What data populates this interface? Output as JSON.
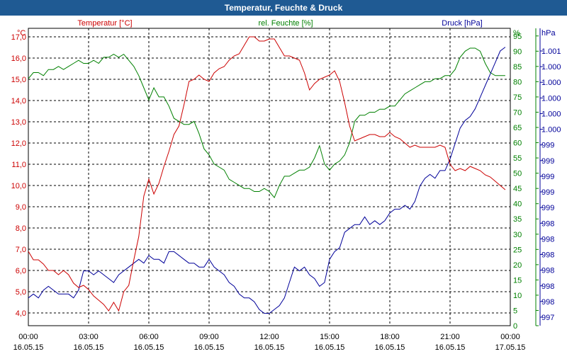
{
  "title": "Temperatur, Feuchte & Druck",
  "colors": {
    "temp": "#cc0000",
    "hum": "#008000",
    "press": "#000099",
    "titlebar": "#1f5a93",
    "grid": "#000000"
  },
  "chart_data": {
    "type": "line",
    "title": "Temperatur, Feuchte & Druck",
    "grid": true,
    "x_ticks": [
      {
        "hours": 0,
        "time": "00:00",
        "date": "16.05.15"
      },
      {
        "hours": 3,
        "time": "03:00",
        "date": "16.05.15"
      },
      {
        "hours": 6,
        "time": "06:00",
        "date": "16.05.15"
      },
      {
        "hours": 9,
        "time": "09:00",
        "date": "16.05.15"
      },
      {
        "hours": 12,
        "time": "12:00",
        "date": "16.05.15"
      },
      {
        "hours": 15,
        "time": "15:00",
        "date": "16.05.15"
      },
      {
        "hours": 18,
        "time": "18:00",
        "date": "16.05.15"
      },
      {
        "hours": 21,
        "time": "21:00",
        "date": "16.05.15"
      },
      {
        "hours": 24,
        "time": "00:00",
        "date": "17.05.15"
      }
    ],
    "xlim": [
      0,
      24
    ],
    "axes": {
      "temp": {
        "label": "Temperatur [°C]",
        "unit": "°C",
        "ylim": [
          3.4,
          17.4
        ],
        "ticks": [
          "4,0",
          "5,0",
          "6,0",
          "7,0",
          "8,0",
          "9,0",
          "10,0",
          "11,0",
          "12,0",
          "13,0",
          "14,0",
          "15,0",
          "16,0",
          "17,0"
        ],
        "tick_values": [
          4,
          5,
          6,
          7,
          8,
          9,
          10,
          11,
          12,
          13,
          14,
          15,
          16,
          17
        ]
      },
      "hum": {
        "label": "rel. Feuchte [%]",
        "unit": "%",
        "ylim": [
          0,
          97.5
        ],
        "ticks": [
          "0",
          "5",
          "10",
          "15",
          "20",
          "25",
          "30",
          "35",
          "40",
          "45",
          "50",
          "55",
          "60",
          "65",
          "70",
          "75",
          "80",
          "85",
          "90",
          "95"
        ],
        "tick_values": [
          0,
          5,
          10,
          15,
          20,
          25,
          30,
          35,
          40,
          45,
          50,
          55,
          60,
          65,
          70,
          75,
          80,
          85,
          90,
          95
        ]
      },
      "press": {
        "label": "Druck [hPa]",
        "unit": "hPa",
        "ticks": [
          "997",
          "998",
          "998",
          "998",
          "998",
          "998",
          "998",
          "999",
          "999",
          "999",
          "999",
          "999",
          "1.000",
          "1.000",
          "1.000",
          "1.000",
          "1.000",
          "1.001"
        ]
      }
    },
    "series": [
      {
        "name": "Temperatur [°C]",
        "axis": "temp",
        "x": [
          0,
          0.25,
          0.5,
          0.75,
          1,
          1.25,
          1.5,
          1.75,
          2,
          2.25,
          2.5,
          2.75,
          3,
          3.25,
          3.5,
          3.75,
          4,
          4.25,
          4.5,
          4.75,
          5,
          5.25,
          5.5,
          5.75,
          6,
          6.25,
          6.5,
          6.75,
          7,
          7.25,
          7.5,
          7.75,
          8,
          8.25,
          8.5,
          8.75,
          9,
          9.25,
          9.5,
          9.75,
          10,
          10.25,
          10.5,
          10.75,
          11,
          11.25,
          11.5,
          11.75,
          12,
          12.25,
          12.5,
          12.75,
          13,
          13.25,
          13.5,
          13.75,
          14,
          14.25,
          14.5,
          14.75,
          15,
          15.25,
          15.5,
          15.75,
          16,
          16.25,
          16.5,
          16.75,
          17,
          17.25,
          17.5,
          17.75,
          18,
          18.25,
          18.5,
          18.75,
          19,
          19.25,
          19.5,
          19.75,
          20,
          20.25,
          20.5,
          20.75,
          21,
          21.25,
          21.5,
          21.75,
          22,
          22.25,
          22.5,
          22.75,
          23,
          23.25,
          23.5,
          23.75
        ],
        "values": [
          6.9,
          6.5,
          6.5,
          6.3,
          6.0,
          6.0,
          5.8,
          6.0,
          5.8,
          5.4,
          5.2,
          5.3,
          5.1,
          4.8,
          4.6,
          4.4,
          4.1,
          4.5,
          4.1,
          5.0,
          5.3,
          6.5,
          7.6,
          9.5,
          10.3,
          9.6,
          10.1,
          10.9,
          11.6,
          12.4,
          12.8,
          13.8,
          14.9,
          15.0,
          15.2,
          15.0,
          14.9,
          15.3,
          15.5,
          15.6,
          15.9,
          16.1,
          16.2,
          16.6,
          17.0,
          17.0,
          16.8,
          16.8,
          16.9,
          16.9,
          16.5,
          16.1,
          16.1,
          16.0,
          15.9,
          15.3,
          14.5,
          14.8,
          15.0,
          15.1,
          15.2,
          15.4,
          14.9,
          13.9,
          12.8,
          12.1,
          12.2,
          12.3,
          12.4,
          12.4,
          12.3,
          12.3,
          12.5,
          12.3,
          12.2,
          12.0,
          11.8,
          11.9,
          11.8,
          11.8,
          11.8,
          11.8,
          11.9,
          11.8,
          11.0,
          10.7,
          10.8,
          10.7,
          10.9,
          10.8,
          10.7,
          10.5,
          10.4,
          10.2,
          10.0,
          9.8
        ]
      },
      {
        "name": "rel. Feuchte [%]",
        "axis": "hum",
        "x": [
          0,
          0.25,
          0.5,
          0.75,
          1,
          1.25,
          1.5,
          1.75,
          2,
          2.25,
          2.5,
          2.75,
          3,
          3.25,
          3.5,
          3.75,
          4,
          4.25,
          4.5,
          4.75,
          5,
          5.25,
          5.5,
          5.75,
          6,
          6.25,
          6.5,
          6.75,
          7,
          7.25,
          7.5,
          7.75,
          8,
          8.25,
          8.5,
          8.75,
          9,
          9.25,
          9.5,
          9.75,
          10,
          10.25,
          10.5,
          10.75,
          11,
          11.25,
          11.5,
          11.75,
          12,
          12.25,
          12.5,
          12.75,
          13,
          13.25,
          13.5,
          13.75,
          14,
          14.25,
          14.5,
          14.75,
          15,
          15.25,
          15.5,
          15.75,
          16,
          16.25,
          16.5,
          16.75,
          17,
          17.25,
          17.5,
          17.75,
          18,
          18.25,
          18.5,
          18.75,
          19,
          19.25,
          19.5,
          19.75,
          20,
          20.25,
          20.5,
          20.75,
          21,
          21.25,
          21.5,
          21.75,
          22,
          22.25,
          22.5,
          22.75,
          23,
          23.25,
          23.5,
          23.75
        ],
        "values": [
          81,
          83,
          83,
          82,
          84,
          84,
          85,
          84,
          85,
          86,
          87,
          86,
          86,
          87,
          86,
          88,
          88,
          89,
          88,
          89,
          87,
          85,
          82,
          78,
          74,
          78,
          75,
          75,
          72,
          68,
          67,
          66,
          66,
          67,
          63,
          58,
          56,
          53,
          52,
          51,
          48,
          47,
          46,
          45,
          45,
          44,
          44,
          45,
          44,
          42,
          46,
          49,
          49,
          50,
          51,
          51,
          52,
          55,
          59,
          53,
          51,
          53,
          54,
          56,
          60,
          67,
          69,
          69,
          70,
          70,
          71,
          71,
          72,
          72,
          74,
          76,
          77,
          78,
          79,
          80,
          80,
          81,
          81,
          82,
          82,
          84,
          88,
          90,
          91,
          91,
          90,
          86,
          83,
          82,
          82,
          82
        ]
      },
      {
        "name": "Druck [hPa]",
        "axis": "press",
        "x": [
          0,
          0.25,
          0.5,
          0.75,
          1,
          1.25,
          1.5,
          1.75,
          2,
          2.25,
          2.5,
          2.75,
          3,
          3.25,
          3.5,
          3.75,
          4,
          4.25,
          4.5,
          4.75,
          5,
          5.25,
          5.5,
          5.75,
          6,
          6.25,
          6.5,
          6.75,
          7,
          7.25,
          7.5,
          7.75,
          8,
          8.25,
          8.5,
          8.75,
          9,
          9.25,
          9.5,
          9.75,
          10,
          10.25,
          10.5,
          10.75,
          11,
          11.25,
          11.5,
          11.75,
          12,
          12.25,
          12.5,
          12.75,
          13,
          13.25,
          13.5,
          13.75,
          14,
          14.25,
          14.5,
          14.75,
          15,
          15.25,
          15.5,
          15.75,
          16,
          16.25,
          16.5,
          16.75,
          17,
          17.25,
          17.5,
          17.75,
          18,
          18.25,
          18.5,
          18.75,
          19,
          19.25,
          19.5,
          19.75,
          20,
          20.25,
          20.5,
          20.75,
          21,
          21.25,
          21.5,
          21.75,
          22,
          22.25,
          22.5,
          22.75,
          23,
          23.25,
          23.5,
          23.75
        ],
        "values": [
          997.9,
          997.95,
          997.9,
          998.0,
          998.05,
          998.0,
          997.95,
          997.95,
          997.95,
          997.9,
          998.0,
          998.25,
          998.25,
          998.2,
          998.25,
          998.2,
          998.15,
          998.1,
          998.2,
          998.25,
          998.3,
          998.35,
          998.4,
          998.35,
          998.45,
          998.4,
          998.4,
          998.35,
          998.5,
          998.5,
          998.45,
          998.4,
          998.35,
          998.35,
          998.3,
          998.3,
          998.4,
          998.3,
          998.25,
          998.2,
          998.1,
          998.05,
          997.95,
          997.9,
          997.9,
          997.85,
          997.75,
          997.7,
          997.7,
          997.75,
          997.8,
          997.9,
          998.1,
          998.3,
          998.25,
          998.3,
          998.2,
          998.15,
          998.05,
          998.1,
          998.4,
          998.5,
          998.55,
          998.75,
          998.8,
          998.85,
          998.85,
          998.95,
          998.85,
          998.9,
          998.85,
          998.9,
          999.0,
          999.05,
          999.05,
          999.1,
          999.05,
          999.15,
          999.35,
          999.45,
          999.5,
          999.45,
          999.55,
          999.55,
          999.7,
          999.9,
          1000.1,
          1000.2,
          1000.25,
          1000.35,
          1000.5,
          1000.65,
          1000.8,
          1000.95,
          1001.1,
          1001.15
        ]
      }
    ]
  }
}
